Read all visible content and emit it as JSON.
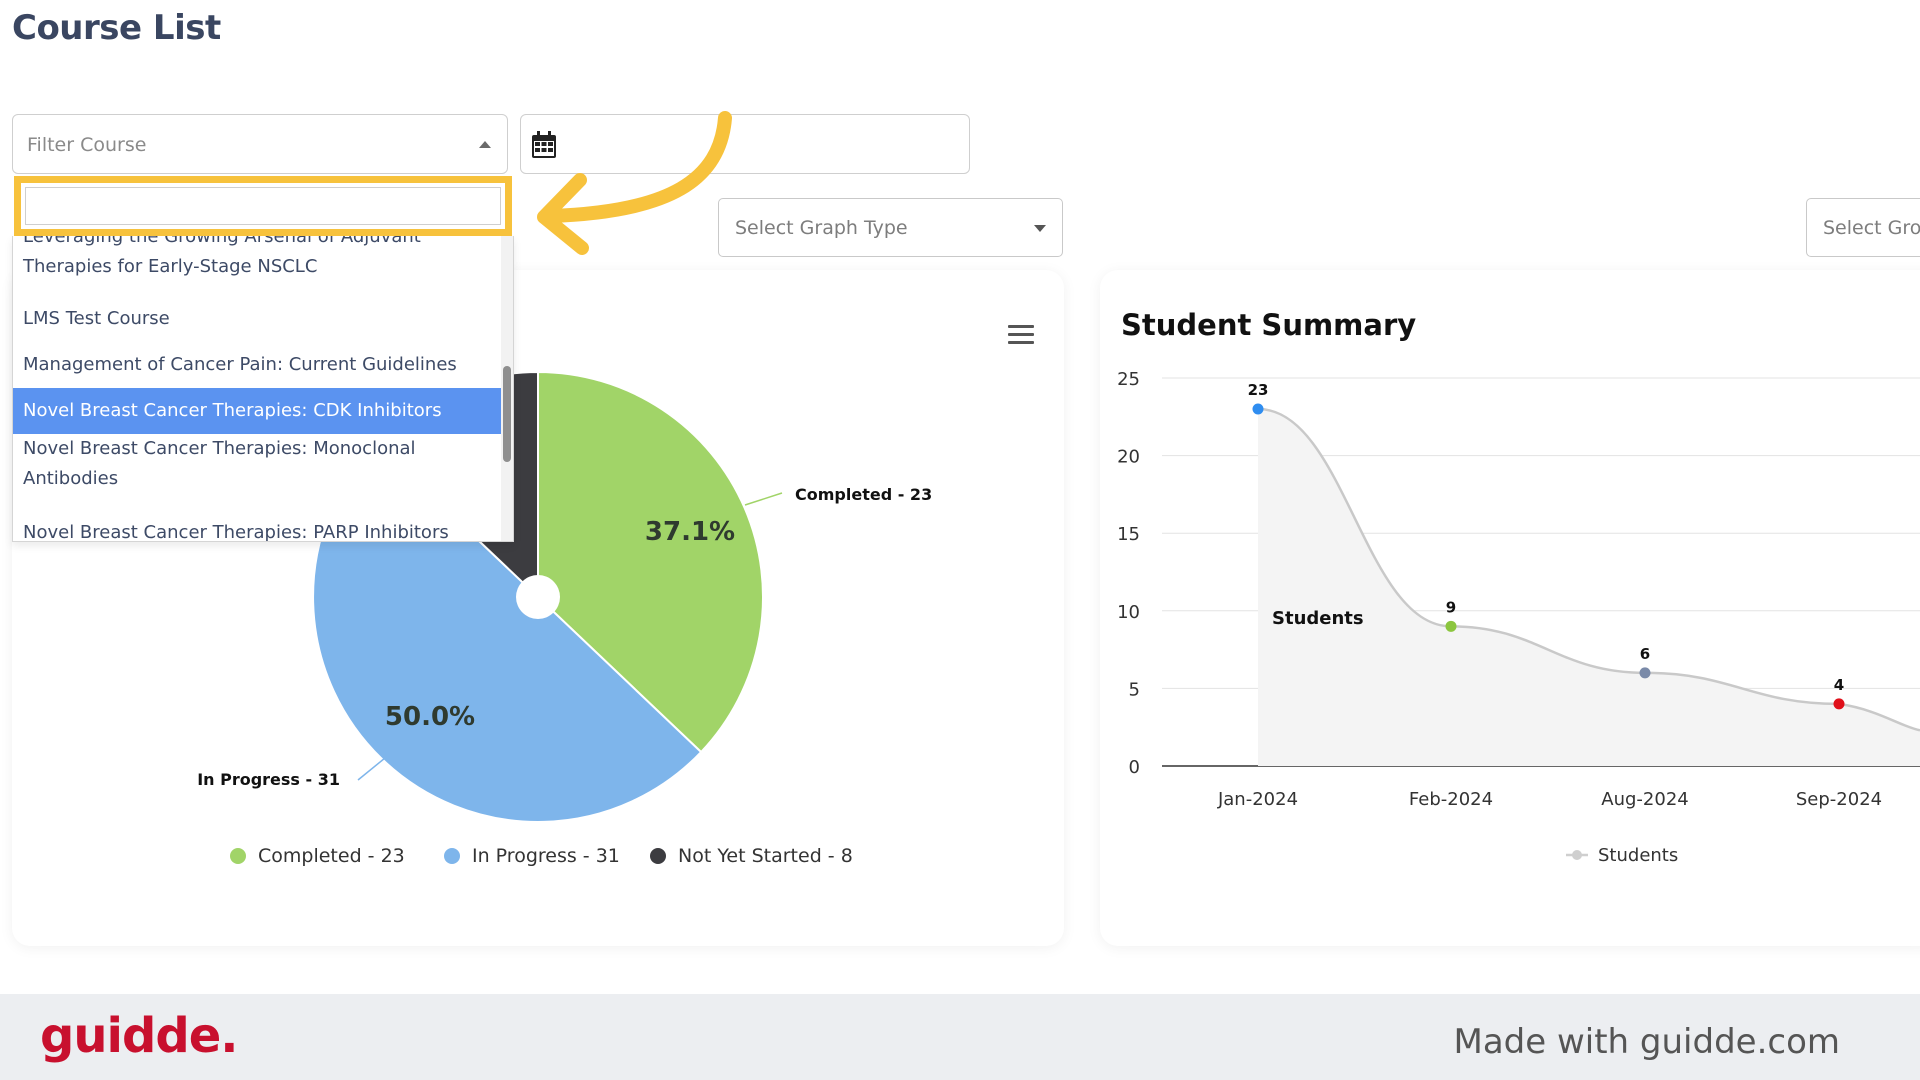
{
  "page": {
    "title": "Course List"
  },
  "filters": {
    "course_placeholder": "Filter Course",
    "graph_type_placeholder": "Select Graph Type",
    "group_placeholder": "Select Gro"
  },
  "dropdown": {
    "search_value": "",
    "options": [
      {
        "label_line1": "Leveraging the Growing Arsenal of Adjuvant",
        "label_line2": "Therapies for Early-Stage NSCLC",
        "selected": false
      },
      {
        "label_line1": "LMS Test Course",
        "label_line2": "",
        "selected": false
      },
      {
        "label_line1": "Management of Cancer Pain: Current Guidelines",
        "label_line2": "",
        "selected": false
      },
      {
        "label_line1": "Novel Breast Cancer Therapies: CDK Inhibitors",
        "label_line2": "",
        "selected": true
      },
      {
        "label_line1": "Novel Breast Cancer Therapies: Monoclonal",
        "label_line2": "Antibodies",
        "selected": false
      },
      {
        "label_line1": "Novel Breast Cancer Therapies: PARP Inhibitors",
        "label_line2": "",
        "selected": false
      }
    ]
  },
  "chart_data": [
    {
      "type": "pie",
      "slices": [
        {
          "name": "Completed - 23",
          "value": 23,
          "percent_label": "37.1%",
          "color": "#a1d468"
        },
        {
          "name": "In Progress - 31",
          "value": 31,
          "percent_label": "50.0%",
          "color": "#7eb5eb"
        },
        {
          "name": "Not Yet Started - 8",
          "value": 8,
          "percent_label": "",
          "color": "#3c3c40"
        }
      ],
      "legend": [
        "Completed - 23",
        "In Progress - 31",
        "Not Yet Started - 8"
      ],
      "legend_position": "bottom"
    },
    {
      "type": "line",
      "title": "Student Summary",
      "categories": [
        "Jan-2024",
        "Feb-2024",
        "Aug-2024",
        "Sep-2024"
      ],
      "series": [
        {
          "name": "Students",
          "values": [
            23,
            9,
            6,
            4
          ]
        }
      ],
      "point_colors": [
        "#2f8df0",
        "#8cc63f",
        "#7a8aa8",
        "#e0101a"
      ],
      "yticks": [
        0,
        5,
        10,
        15,
        20,
        25
      ],
      "ylim": [
        0,
        25
      ],
      "inline_label": "Students",
      "legend_position": "bottom",
      "grid": true
    }
  ],
  "footer": {
    "brand": "guidde.",
    "made_with": "Made with guidde.com"
  }
}
